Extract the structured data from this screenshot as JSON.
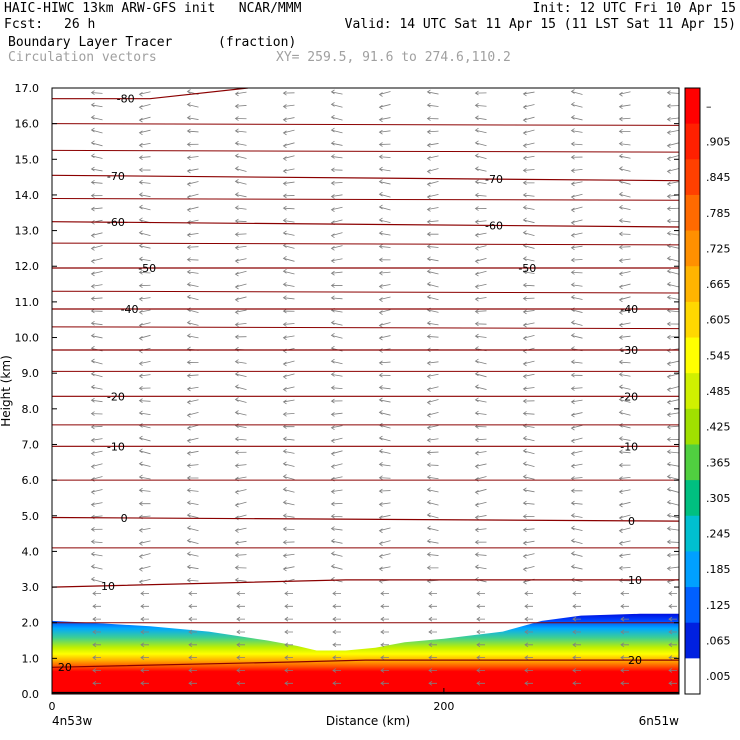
{
  "header": {
    "line1_left": "HAIC-HIWC 13km ARW-GFS init   NCAR/MMM",
    "line1_right": "Init: 12 UTC Fri 10 Apr 15",
    "fcst_label": "Fcst:",
    "fcst_value": "26 h",
    "valid": "Valid: 14 UTC Sat 11 Apr 15 (11 LST Sat 11 Apr 15)",
    "field_name": "Boundary Layer Tracer",
    "field_units": "(fraction)",
    "vectors_label": "Circulation vectors",
    "xy_label": "XY= 259.5, 91.6 to 274.6,110.2"
  },
  "chart_data": {
    "type": "cross-section",
    "ylabel": "Height (km)",
    "xlabel": "Distance (km)",
    "ylim": [
      0,
      17
    ],
    "y_ticks": [
      "0.0",
      "1.0",
      "2.0",
      "3.0",
      "4.0",
      "5.0",
      "6.0",
      "7.0",
      "8.0",
      "9.0",
      "10.0",
      "11.0",
      "12.0",
      "13.0",
      "14.0",
      "15.0",
      "16.0",
      "17.0"
    ],
    "xlim": [
      0,
      320
    ],
    "x_ticks": [
      {
        "value": 0,
        "label": "0"
      },
      {
        "value": 200,
        "label": "200"
      }
    ],
    "x_endpoints": {
      "left": "4n53w",
      "right": "6n51w"
    },
    "colorbar": {
      "labels": [
        "–",
        ".905",
        ".845",
        ".785",
        ".725",
        ".665",
        ".605",
        ".545",
        ".485",
        ".425",
        ".365",
        ".305",
        ".245",
        ".185",
        ".125",
        ".065",
        ".005"
      ],
      "colors": [
        "#ff0000",
        "#ff2000",
        "#ff4000",
        "#ff6a00",
        "#ff9000",
        "#ffb400",
        "#ffd800",
        "#ffff00",
        "#d0f000",
        "#a0e000",
        "#50d040",
        "#00c080",
        "#00c0d0",
        "#00a0ff",
        "#0060ff",
        "#0020e0",
        "#ffffff"
      ]
    },
    "tracer_top_km": [
      {
        "x": 0,
        "y": 2.05
      },
      {
        "x": 20,
        "y": 2.0
      },
      {
        "x": 50,
        "y": 1.9
      },
      {
        "x": 80,
        "y": 1.75
      },
      {
        "x": 110,
        "y": 1.5
      },
      {
        "x": 125,
        "y": 1.35
      },
      {
        "x": 135,
        "y": 1.22
      },
      {
        "x": 150,
        "y": 1.22
      },
      {
        "x": 165,
        "y": 1.3
      },
      {
        "x": 180,
        "y": 1.45
      },
      {
        "x": 200,
        "y": 1.55
      },
      {
        "x": 230,
        "y": 1.75
      },
      {
        "x": 250,
        "y": 2.05
      },
      {
        "x": 270,
        "y": 2.2
      },
      {
        "x": 300,
        "y": 2.25
      },
      {
        "x": 320,
        "y": 2.25
      }
    ],
    "temperature_contours": [
      {
        "label": "-80",
        "points": [
          [
            0,
            16.7
          ],
          [
            50,
            16.7
          ],
          [
            100,
            17.0
          ]
        ],
        "label_x": 33
      },
      {
        "label": "-70",
        "points": [
          [
            0,
            14.55
          ],
          [
            320,
            14.4
          ]
        ],
        "label_x": 28,
        "label2_x": 221
      },
      {
        "label": "-60",
        "points": [
          [
            0,
            13.25
          ],
          [
            320,
            13.1
          ]
        ],
        "label_x": 28,
        "label2_x": 221
      },
      {
        "label": "-50",
        "points": [
          [
            0,
            11.95
          ],
          [
            320,
            11.95
          ]
        ],
        "label_x": 44,
        "label2_x": 238
      },
      {
        "label": "-40",
        "points": [
          [
            0,
            10.8
          ],
          [
            320,
            10.8
          ]
        ],
        "label_x": 35,
        "label2_x": 290
      },
      {
        "label": "-30",
        "points": [
          [
            0,
            9.65
          ],
          [
            320,
            9.65
          ]
        ],
        "label2_x": 290
      },
      {
        "label": "-20",
        "points": [
          [
            0,
            8.35
          ],
          [
            320,
            8.35
          ]
        ],
        "label_x": 28,
        "label2_x": 290
      },
      {
        "label": "-10",
        "points": [
          [
            0,
            6.95
          ],
          [
            320,
            6.95
          ]
        ],
        "label_x": 28,
        "label2_x": 290
      },
      {
        "label": "0",
        "points": [
          [
            0,
            4.95
          ],
          [
            320,
            4.85
          ]
        ],
        "label_x": 35,
        "label2_x": 294
      },
      {
        "label": "10",
        "points": [
          [
            0,
            3.0
          ],
          [
            150,
            3.2
          ],
          [
            320,
            3.2
          ]
        ],
        "label_x": 25,
        "label2_x": 294
      },
      {
        "label": "20",
        "points": [
          [
            0,
            0.75
          ],
          [
            125,
            0.9
          ],
          [
            160,
            0.95
          ],
          [
            320,
            0.95
          ]
        ],
        "label_x": 3,
        "label2_x": 294
      }
    ],
    "extra_isotherms_km": [
      16.0,
      15.25,
      13.9,
      12.65,
      11.3,
      10.3,
      9.05,
      7.55,
      6.0,
      4.1,
      2.0
    ]
  }
}
